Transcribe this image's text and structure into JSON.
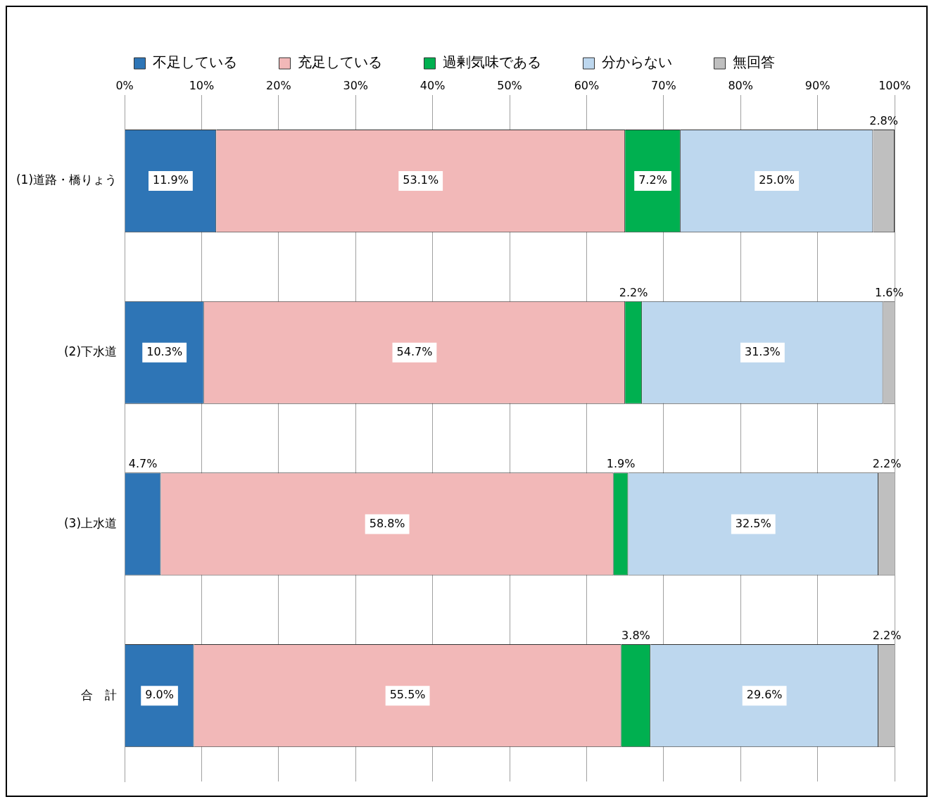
{
  "chart_data": {
    "type": "bar",
    "orientation": "horizontal",
    "stacked": true,
    "categories": [
      "(1)道路・橋りょう",
      "(2)下水道",
      "(3)上水道",
      "合　計"
    ],
    "series": [
      {
        "name": "不足している",
        "color": "#2e75b6",
        "values": [
          11.9,
          10.3,
          4.7,
          9.0
        ],
        "value_labels": [
          "11.9%",
          "10.3%",
          "4.7%",
          "9.0%"
        ]
      },
      {
        "name": "充足している",
        "color": "#f2b8b8",
        "values": [
          53.1,
          54.7,
          58.8,
          55.5
        ],
        "value_labels": [
          "53.1%",
          "54.7%",
          "58.8%",
          "55.5%"
        ]
      },
      {
        "name": "過剰気味である",
        "color": "#00b050",
        "values": [
          7.2,
          2.2,
          1.9,
          3.8
        ],
        "value_labels": [
          "7.2%",
          "2.2%",
          "1.9%",
          "3.8%"
        ]
      },
      {
        "name": "分からない",
        "color": "#bdd7ee",
        "values": [
          25.0,
          31.3,
          32.5,
          29.6
        ],
        "value_labels": [
          "25.0%",
          "31.3%",
          "32.5%",
          "29.6%"
        ]
      },
      {
        "name": "無回答",
        "color": "#bfbfbf",
        "values": [
          2.8,
          1.6,
          2.2,
          2.2
        ],
        "value_labels": [
          "2.8%",
          "1.6%",
          "2.2%",
          "2.2%"
        ]
      }
    ],
    "xlim": [
      0,
      100
    ],
    "xticks": [
      {
        "value": 0,
        "label": "0%"
      },
      {
        "value": 10,
        "label": "10%"
      },
      {
        "value": 20,
        "label": "20%"
      },
      {
        "value": 30,
        "label": "30%"
      },
      {
        "value": 40,
        "label": "40%"
      },
      {
        "value": 50,
        "label": "50%"
      },
      {
        "value": 60,
        "label": "60%"
      },
      {
        "value": 70,
        "label": "70%"
      },
      {
        "value": 80,
        "label": "80%"
      },
      {
        "value": 90,
        "label": "90%"
      },
      {
        "value": 100,
        "label": "100%"
      }
    ],
    "grid": "x",
    "legend": "top"
  }
}
